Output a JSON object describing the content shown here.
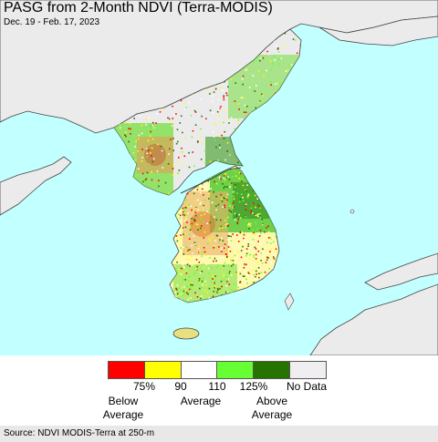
{
  "header": {
    "title": "PASG from 2-Month NDVI (Terra-MODIS)",
    "subtitle": "Dec. 19 - Feb. 17, 2023"
  },
  "legend": {
    "colors": [
      "#ff0000",
      "#ffff00",
      "#ffffff",
      "#66ff33",
      "#267300",
      "#f0eef0"
    ],
    "ticks": [
      "75%",
      "90",
      "110",
      "125%",
      "No Data"
    ],
    "below_average": "Below\nAverage",
    "average": "Average",
    "above_average": "Above\nAverage"
  },
  "map": {
    "ocean_color": "#c2ffff",
    "land_nodata_color": "#ecebec"
  },
  "footer": {
    "source": "Source: NDVI MODIS-Terra at 250-m"
  }
}
